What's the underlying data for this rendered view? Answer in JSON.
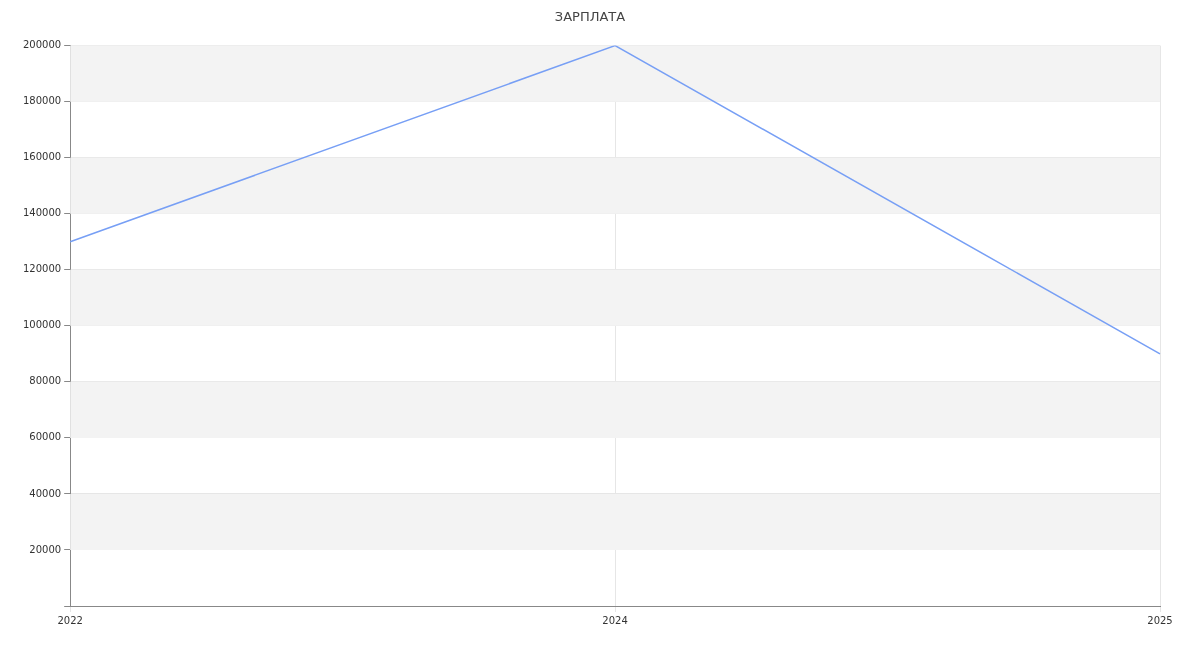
{
  "chart_data": {
    "type": "line",
    "title": "ЗАРПЛАТА",
    "categories": [
      "2022",
      "2024",
      "2025"
    ],
    "series": [
      {
        "color": "#779ff5",
        "values": [
          130000,
          200000,
          90000
        ]
      }
    ],
    "ylim": [
      0,
      200000
    ],
    "yticks": [
      {
        "value": 0,
        "label": null
      },
      20000,
      40000,
      60000,
      80000,
      100000,
      120000,
      140000,
      160000,
      180000,
      200000
    ],
    "grid": true,
    "legend": false,
    "marker": "none",
    "line_style": "solid"
  }
}
